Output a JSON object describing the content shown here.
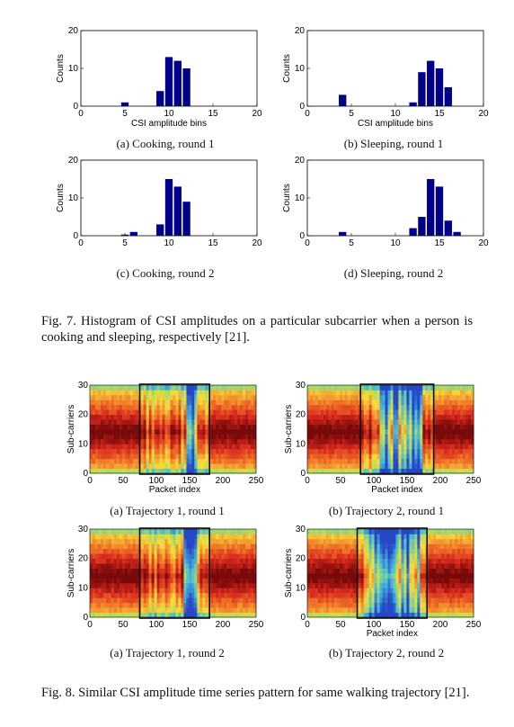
{
  "fig7": {
    "panels": [
      {
        "caption": "(a) Cooking, round 1",
        "chart_data": {
          "type": "bar",
          "x": [
            5,
            9,
            10,
            11,
            12
          ],
          "values": [
            1,
            4,
            13,
            12,
            10
          ],
          "xlim": [
            0,
            20
          ],
          "ylim": [
            0,
            20
          ],
          "xticks": [
            "0",
            "5",
            "10",
            "15",
            "20"
          ],
          "yticks": [
            "0",
            "10",
            "20"
          ],
          "xlabel": "CSI amplitude bins",
          "ylabel": "Counts",
          "color": "#00008B"
        }
      },
      {
        "caption": "(b) Sleeping, round 1",
        "chart_data": {
          "type": "bar",
          "x": [
            4,
            12,
            13,
            14,
            15,
            16
          ],
          "values": [
            3,
            1,
            9,
            12,
            10,
            5
          ],
          "xlim": [
            0,
            20
          ],
          "ylim": [
            0,
            20
          ],
          "xticks": [
            "0",
            "5",
            "10",
            "15",
            "20"
          ],
          "yticks": [
            "0",
            "10",
            "20"
          ],
          "xlabel": "CSI amplitude bins",
          "ylabel": "Counts",
          "color": "#00008B"
        }
      },
      {
        "caption": "(c) Cooking, round 2",
        "chart_data": {
          "type": "bar",
          "x": [
            5,
            6,
            9,
            10,
            11,
            12
          ],
          "values": [
            0.3,
            1,
            3,
            15,
            13,
            9
          ],
          "xlim": [
            0,
            20
          ],
          "ylim": [
            0,
            20
          ],
          "xticks": [
            "0",
            "5",
            "10",
            "15",
            "20"
          ],
          "yticks": [
            "0",
            "10",
            "20"
          ],
          "xlabel": "",
          "ylabel": "Counts",
          "color": "#00008B"
        }
      },
      {
        "caption": "(d) Sleeping, round 2",
        "chart_data": {
          "type": "bar",
          "x": [
            4,
            12,
            13,
            14,
            15,
            16,
            17
          ],
          "values": [
            1,
            2,
            5,
            15,
            13,
            4,
            1
          ],
          "xlim": [
            0,
            20
          ],
          "ylim": [
            0,
            20
          ],
          "xticks": [
            "0",
            "5",
            "10",
            "15",
            "20"
          ],
          "yticks": [
            "0",
            "10",
            "20"
          ],
          "xlabel": "",
          "ylabel": "Counts",
          "color": "#00008B"
        }
      }
    ],
    "caption": "Fig. 7.   Histogram of CSI amplitudes on a particular subcarrier when a person is cooking and sleeping, respectively [21]."
  },
  "fig8": {
    "panels": [
      {
        "caption": "(a) Trajectory 1, round 1",
        "chart_data": {
          "type": "heatmap",
          "xlim": [
            0,
            250
          ],
          "ylim": [
            0,
            30
          ],
          "xticks": [
            "0",
            "50",
            "100",
            "150",
            "200",
            "250"
          ],
          "yticks": [
            "0",
            "10",
            "20",
            "30"
          ],
          "xlabel": "Packet index",
          "ylabel": "Sub-carriers",
          "box": [
            75,
            180
          ],
          "dip": [
            146,
            160
          ]
        }
      },
      {
        "caption": "(b) Trajectory 2, round 1",
        "chart_data": {
          "type": "heatmap",
          "xlim": [
            0,
            250
          ],
          "ylim": [
            0,
            30
          ],
          "xticks": [
            "0",
            "50",
            "100",
            "150",
            "200",
            "250"
          ],
          "yticks": [
            "0",
            "10",
            "20",
            "30"
          ],
          "xlabel": "Packet index",
          "ylabel": "Sub-carriers",
          "box": [
            80,
            190
          ],
          "dip": [
            110,
            175
          ]
        }
      },
      {
        "caption": "(a) Trajectory 1, round 2",
        "chart_data": {
          "type": "heatmap",
          "xlim": [
            0,
            250
          ],
          "ylim": [
            0,
            30
          ],
          "xticks": [
            "0",
            "50",
            "100",
            "150",
            "200",
            "250"
          ],
          "yticks": [
            "0",
            "10",
            "20",
            "30"
          ],
          "xlabel": "",
          "ylabel": "Sub-carriers",
          "box": [
            75,
            180
          ],
          "dip": [
            140,
            160
          ]
        }
      },
      {
        "caption": "(b) Trajectory 2, round 2",
        "chart_data": {
          "type": "heatmap",
          "xlim": [
            0,
            250
          ],
          "ylim": [
            0,
            30
          ],
          "xticks": [
            "0",
            "50",
            "100",
            "150",
            "200",
            "250"
          ],
          "yticks": [
            "0",
            "10",
            "20",
            "30"
          ],
          "xlabel": "Packet index",
          "ylabel": "Sub-carriers",
          "box": [
            75,
            180
          ],
          "dip": [
            90,
            170
          ]
        }
      }
    ],
    "caption": "Fig. 8.    Similar CSI amplitude time series pattern for same walking trajectory [21]."
  }
}
